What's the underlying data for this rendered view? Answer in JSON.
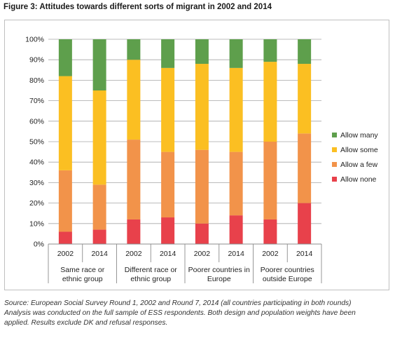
{
  "figure_title": "Figure 3: Attitudes towards different sorts of migrant in 2002 and 2014",
  "source_lines": [
    "Source: European Social Survey Round 1, 2002 and Round 7, 2014 (all countries participating in both rounds)",
    "Analysis was conducted on the full sample of ESS respondents. Both design and population weights have been",
    "applied. Results exclude DK and refusal responses."
  ],
  "chart_data": {
    "type": "bar",
    "stacked": true,
    "title": "",
    "xlabel": "",
    "ylabel": "",
    "ylim": [
      0,
      100
    ],
    "yticks": [
      "0%",
      "10%",
      "20%",
      "30%",
      "40%",
      "50%",
      "60%",
      "70%",
      "80%",
      "90%",
      "100%"
    ],
    "grid": true,
    "legend_position": "right",
    "categories": [
      "2002",
      "2014",
      "2002",
      "2014",
      "2002",
      "2014",
      "2002",
      "2014"
    ],
    "groups": [
      {
        "label_lines": [
          "Same race or",
          "ethnic group"
        ]
      },
      {
        "label_lines": [
          "Different race or",
          "ethnic group"
        ]
      },
      {
        "label_lines": [
          "Poorer countries in",
          "Europe"
        ]
      },
      {
        "label_lines": [
          "Poorer countries",
          "outside Europe"
        ]
      }
    ],
    "series": [
      {
        "name": "Allow none",
        "color": "#e8414b",
        "values": [
          6,
          7,
          12,
          13,
          10,
          14,
          12,
          20
        ]
      },
      {
        "name": "Allow a few",
        "color": "#f2934a",
        "values": [
          30,
          22,
          39,
          32,
          36,
          31,
          38,
          34
        ]
      },
      {
        "name": "Allow some",
        "color": "#fbbf22",
        "values": [
          46,
          46,
          39,
          41,
          42,
          41,
          39,
          34
        ]
      },
      {
        "name": "Allow many",
        "color": "#5e9f4c",
        "values": [
          18,
          25,
          10,
          14,
          12,
          14,
          11,
          12
        ]
      }
    ],
    "legend_order": [
      "Allow many",
      "Allow some",
      "Allow a few",
      "Allow none"
    ]
  }
}
